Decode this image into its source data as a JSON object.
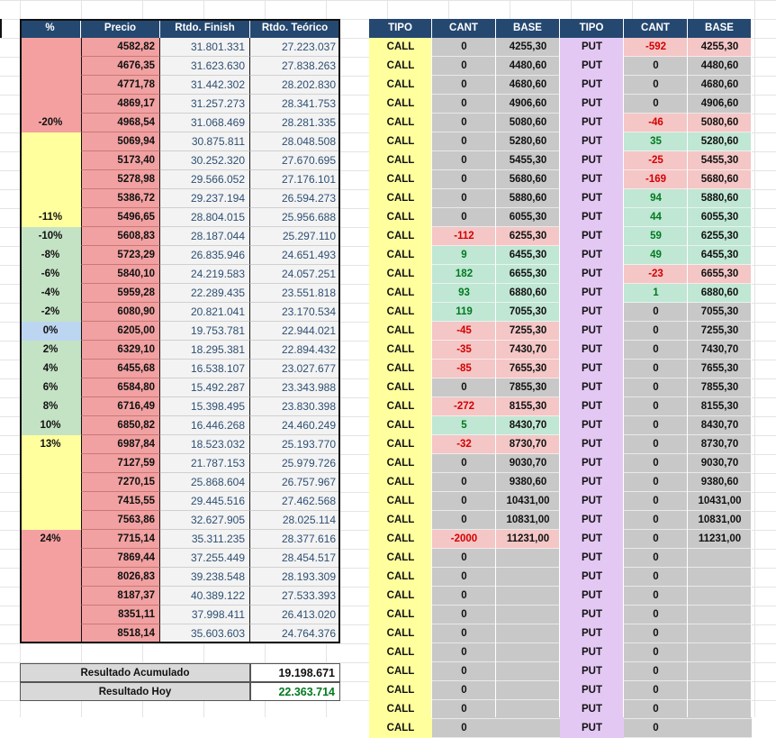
{
  "left_table": {
    "headers": [
      "%",
      "Precio",
      "Rtdo. Finish",
      "Rtdo. Teórico"
    ],
    "rows": [
      {
        "pct": "",
        "precio": "4582,82",
        "finish": "31.801.331",
        "teorico": "27.223.037"
      },
      {
        "pct": "",
        "precio": "4676,35",
        "finish": "31.623.630",
        "teorico": "27.838.263"
      },
      {
        "pct": "",
        "precio": "4771,78",
        "finish": "31.442.302",
        "teorico": "28.202.830"
      },
      {
        "pct": "",
        "precio": "4869,17",
        "finish": "31.257.273",
        "teorico": "28.341.753"
      },
      {
        "pct": "-20%",
        "precio": "4968,54",
        "finish": "31.068.469",
        "teorico": "28.281.335"
      },
      {
        "pct": "",
        "precio": "5069,94",
        "finish": "30.875.811",
        "teorico": "28.048.508"
      },
      {
        "pct": "",
        "precio": "5173,40",
        "finish": "30.252.320",
        "teorico": "27.670.695"
      },
      {
        "pct": "",
        "precio": "5278,98",
        "finish": "29.566.052",
        "teorico": "27.176.101"
      },
      {
        "pct": "",
        "precio": "5386,72",
        "finish": "29.237.194",
        "teorico": "26.594.273"
      },
      {
        "pct": "-11%",
        "precio": "5496,65",
        "finish": "28.804.015",
        "teorico": "25.956.688"
      },
      {
        "pct": "-10%",
        "precio": "5608,83",
        "finish": "28.187.044",
        "teorico": "25.297.110"
      },
      {
        "pct": "-8%",
        "precio": "5723,29",
        "finish": "26.835.946",
        "teorico": "24.651.493"
      },
      {
        "pct": "-6%",
        "precio": "5840,10",
        "finish": "24.219.583",
        "teorico": "24.057.251"
      },
      {
        "pct": "-4%",
        "precio": "5959,28",
        "finish": "22.289.435",
        "teorico": "23.551.818"
      },
      {
        "pct": "-2%",
        "precio": "6080,90",
        "finish": "20.821.041",
        "teorico": "23.170.534"
      },
      {
        "pct": "0%",
        "precio": "6205,00",
        "finish": "19.753.781",
        "teorico": "22.944.021"
      },
      {
        "pct": "2%",
        "precio": "6329,10",
        "finish": "18.295.381",
        "teorico": "22.894.432"
      },
      {
        "pct": "4%",
        "precio": "6455,68",
        "finish": "16.538.107",
        "teorico": "23.027.677"
      },
      {
        "pct": "6%",
        "precio": "6584,80",
        "finish": "15.492.287",
        "teorico": "23.343.988"
      },
      {
        "pct": "8%",
        "precio": "6716,49",
        "finish": "15.398.495",
        "teorico": "23.830.398"
      },
      {
        "pct": "10%",
        "precio": "6850,82",
        "finish": "16.446.268",
        "teorico": "24.460.249"
      },
      {
        "pct": "13%",
        "precio": "6987,84",
        "finish": "18.523.032",
        "teorico": "25.193.770"
      },
      {
        "pct": "",
        "precio": "7127,59",
        "finish": "21.787.153",
        "teorico": "25.979.726"
      },
      {
        "pct": "",
        "precio": "7270,15",
        "finish": "25.868.604",
        "teorico": "26.757.967"
      },
      {
        "pct": "",
        "precio": "7415,55",
        "finish": "29.445.516",
        "teorico": "27.462.568"
      },
      {
        "pct": "",
        "precio": "7563,86",
        "finish": "32.627.905",
        "teorico": "28.025.114"
      },
      {
        "pct": "24%",
        "precio": "7715,14",
        "finish": "35.311.235",
        "teorico": "28.377.616"
      },
      {
        "pct": "",
        "precio": "7869,44",
        "finish": "37.255.449",
        "teorico": "28.454.517"
      },
      {
        "pct": "",
        "precio": "8026,83",
        "finish": "39.238.548",
        "teorico": "28.193.309"
      },
      {
        "pct": "",
        "precio": "8187,37",
        "finish": "40.389.122",
        "teorico": "27.533.393"
      },
      {
        "pct": "",
        "precio": "8351,11",
        "finish": "37.998.411",
        "teorico": "26.413.020"
      },
      {
        "pct": "",
        "precio": "8518,14",
        "finish": "35.603.603",
        "teorico": "24.764.376"
      }
    ]
  },
  "summary": {
    "acumulado_label": "Resultado Acumulado",
    "acumulado_value": "19.198.671",
    "hoy_label": "Resultado Hoy",
    "hoy_value": "22.363.714"
  },
  "right_table": {
    "headers": [
      "TIPO",
      "CANT",
      "BASE",
      "TIPO",
      "CANT",
      "BASE"
    ],
    "rows": [
      {
        "t1": "CALL",
        "c1": "0",
        "b1": "4255,30",
        "t2": "PUT",
        "c2": "-592",
        "b2": "4255,30"
      },
      {
        "t1": "CALL",
        "c1": "0",
        "b1": "4480,60",
        "t2": "PUT",
        "c2": "0",
        "b2": "4480,60"
      },
      {
        "t1": "CALL",
        "c1": "0",
        "b1": "4680,60",
        "t2": "PUT",
        "c2": "0",
        "b2": "4680,60"
      },
      {
        "t1": "CALL",
        "c1": "0",
        "b1": "4906,60",
        "t2": "PUT",
        "c2": "0",
        "b2": "4906,60"
      },
      {
        "t1": "CALL",
        "c1": "0",
        "b1": "5080,60",
        "t2": "PUT",
        "c2": "-46",
        "b2": "5080,60"
      },
      {
        "t1": "CALL",
        "c1": "0",
        "b1": "5280,60",
        "t2": "PUT",
        "c2": "35",
        "b2": "5280,60"
      },
      {
        "t1": "CALL",
        "c1": "0",
        "b1": "5455,30",
        "t2": "PUT",
        "c2": "-25",
        "b2": "5455,30"
      },
      {
        "t1": "CALL",
        "c1": "0",
        "b1": "5680,60",
        "t2": "PUT",
        "c2": "-169",
        "b2": "5680,60"
      },
      {
        "t1": "CALL",
        "c1": "0",
        "b1": "5880,60",
        "t2": "PUT",
        "c2": "94",
        "b2": "5880,60"
      },
      {
        "t1": "CALL",
        "c1": "0",
        "b1": "6055,30",
        "t2": "PUT",
        "c2": "44",
        "b2": "6055,30"
      },
      {
        "t1": "CALL",
        "c1": "-112",
        "b1": "6255,30",
        "t2": "PUT",
        "c2": "59",
        "b2": "6255,30"
      },
      {
        "t1": "CALL",
        "c1": "9",
        "b1": "6455,30",
        "t2": "PUT",
        "c2": "49",
        "b2": "6455,30"
      },
      {
        "t1": "CALL",
        "c1": "182",
        "b1": "6655,30",
        "t2": "PUT",
        "c2": "-23",
        "b2": "6655,30"
      },
      {
        "t1": "CALL",
        "c1": "93",
        "b1": "6880,60",
        "t2": "PUT",
        "c2": "1",
        "b2": "6880,60"
      },
      {
        "t1": "CALL",
        "c1": "119",
        "b1": "7055,30",
        "t2": "PUT",
        "c2": "0",
        "b2": "7055,30"
      },
      {
        "t1": "CALL",
        "c1": "-45",
        "b1": "7255,30",
        "t2": "PUT",
        "c2": "0",
        "b2": "7255,30"
      },
      {
        "t1": "CALL",
        "c1": "-35",
        "b1": "7430,70",
        "t2": "PUT",
        "c2": "0",
        "b2": "7430,70"
      },
      {
        "t1": "CALL",
        "c1": "-85",
        "b1": "7655,30",
        "t2": "PUT",
        "c2": "0",
        "b2": "7655,30"
      },
      {
        "t1": "CALL",
        "c1": "0",
        "b1": "7855,30",
        "t2": "PUT",
        "c2": "0",
        "b2": "7855,30"
      },
      {
        "t1": "CALL",
        "c1": "-272",
        "b1": "8155,30",
        "t2": "PUT",
        "c2": "0",
        "b2": "8155,30"
      },
      {
        "t1": "CALL",
        "c1": "5",
        "b1": "8430,70",
        "t2": "PUT",
        "c2": "0",
        "b2": "8430,70"
      },
      {
        "t1": "CALL",
        "c1": "-32",
        "b1": "8730,70",
        "t2": "PUT",
        "c2": "0",
        "b2": "8730,70"
      },
      {
        "t1": "CALL",
        "c1": "0",
        "b1": "9030,70",
        "t2": "PUT",
        "c2": "0",
        "b2": "9030,70"
      },
      {
        "t1": "CALL",
        "c1": "0",
        "b1": "9380,60",
        "t2": "PUT",
        "c2": "0",
        "b2": "9380,60"
      },
      {
        "t1": "CALL",
        "c1": "0",
        "b1": "10431,00",
        "t2": "PUT",
        "c2": "0",
        "b2": "10431,00"
      },
      {
        "t1": "CALL",
        "c1": "0",
        "b1": "10831,00",
        "t2": "PUT",
        "c2": "0",
        "b2": "10831,00"
      },
      {
        "t1": "CALL",
        "c1": "-2000",
        "b1": "11231,00",
        "t2": "PUT",
        "c2": "0",
        "b2": "11231,00"
      },
      {
        "t1": "CALL",
        "c1": "0",
        "b1": "",
        "t2": "PUT",
        "c2": "0",
        "b2": ""
      },
      {
        "t1": "CALL",
        "c1": "0",
        "b1": "",
        "t2": "PUT",
        "c2": "0",
        "b2": ""
      },
      {
        "t1": "CALL",
        "c1": "0",
        "b1": "",
        "t2": "PUT",
        "c2": "0",
        "b2": ""
      },
      {
        "t1": "CALL",
        "c1": "0",
        "b1": "",
        "t2": "PUT",
        "c2": "0",
        "b2": ""
      },
      {
        "t1": "CALL",
        "c1": "0",
        "b1": "",
        "t2": "PUT",
        "c2": "0",
        "b2": ""
      },
      {
        "t1": "CALL",
        "c1": "0",
        "b1": "",
        "t2": "PUT",
        "c2": "0",
        "b2": ""
      },
      {
        "t1": "CALL",
        "c1": "0",
        "b1": "",
        "t2": "PUT",
        "c2": "0",
        "b2": ""
      },
      {
        "t1": "CALL",
        "c1": "0",
        "b1": "",
        "t2": "PUT",
        "c2": "0",
        "b2": ""
      },
      {
        "t1": "CALL",
        "c1": "0",
        "b1": "",
        "t2": "PUT",
        "c2": "0",
        "b2": ""
      },
      {
        "t1": "CALL",
        "c1": "0",
        "b1": "",
        "t2": "PUT",
        "c2": "0",
        "b2": ""
      }
    ]
  },
  "colors": {
    "header_blue": "#254870",
    "red_band": "#f4a0a0",
    "yellow_band": "#ffff9e",
    "green_band": "#c4e2c4",
    "blue_zero": "#bcd6f2",
    "precio_red": "#f1a1a1",
    "call_yellow": "#ffff9e",
    "put_lilac": "#e4c8f4",
    "qty_gray": "#c8c8c8",
    "qty_neg": "#f4c6c6",
    "qty_pos": "#c0e6d4",
    "neg_text": "#d40000",
    "pos_text": "#007a1f"
  }
}
